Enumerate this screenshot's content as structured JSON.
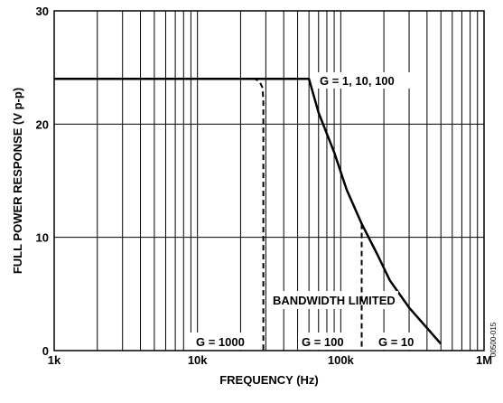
{
  "chart_data": {
    "type": "line",
    "xlabel": "FREQUENCY (Hz)",
    "ylabel": "FULL POWER RESPONSE (V p-p)",
    "x_scale": "log",
    "xlim": [
      1000,
      1000000
    ],
    "ylim": [
      0,
      30
    ],
    "grid": true,
    "x_ticks": [
      {
        "value": 1000,
        "label": "1k"
      },
      {
        "value": 10000,
        "label": "10k"
      },
      {
        "value": 100000,
        "label": "100k"
      },
      {
        "value": 1000000,
        "label": "1M"
      }
    ],
    "y_ticks": [
      {
        "value": 0,
        "label": "0"
      },
      {
        "value": 10,
        "label": "10"
      },
      {
        "value": 20,
        "label": "20"
      },
      {
        "value": 30,
        "label": "30"
      }
    ],
    "series": [
      {
        "name": "G = 1, 10, 100",
        "style": "solid",
        "x": [
          1000,
          60000,
          70000,
          90000,
          110000,
          140000,
          180000,
          220000,
          300000,
          500000
        ],
        "y": [
          24,
          24,
          21,
          17.5,
          14.2,
          11.2,
          8.5,
          6.2,
          3.8,
          0.6
        ]
      },
      {
        "name": "G = 1000",
        "style": "dashed",
        "x": [
          1000,
          25000,
          27000,
          28500,
          28800,
          28800
        ],
        "y": [
          24,
          24,
          23.8,
          23.2,
          22.0,
          0
        ]
      }
    ],
    "cutoff_markers": [
      {
        "x": 140000,
        "y_top": 11.2,
        "style": "dashed"
      }
    ],
    "annotations": [
      {
        "text": "G = 1, 10, 100"
      },
      {
        "text": "BANDWIDTH LIMITED"
      },
      {
        "text": "G = 1000"
      },
      {
        "text": "G = 100"
      },
      {
        "text": "G = 10"
      }
    ],
    "figure_id": "00500-015"
  }
}
